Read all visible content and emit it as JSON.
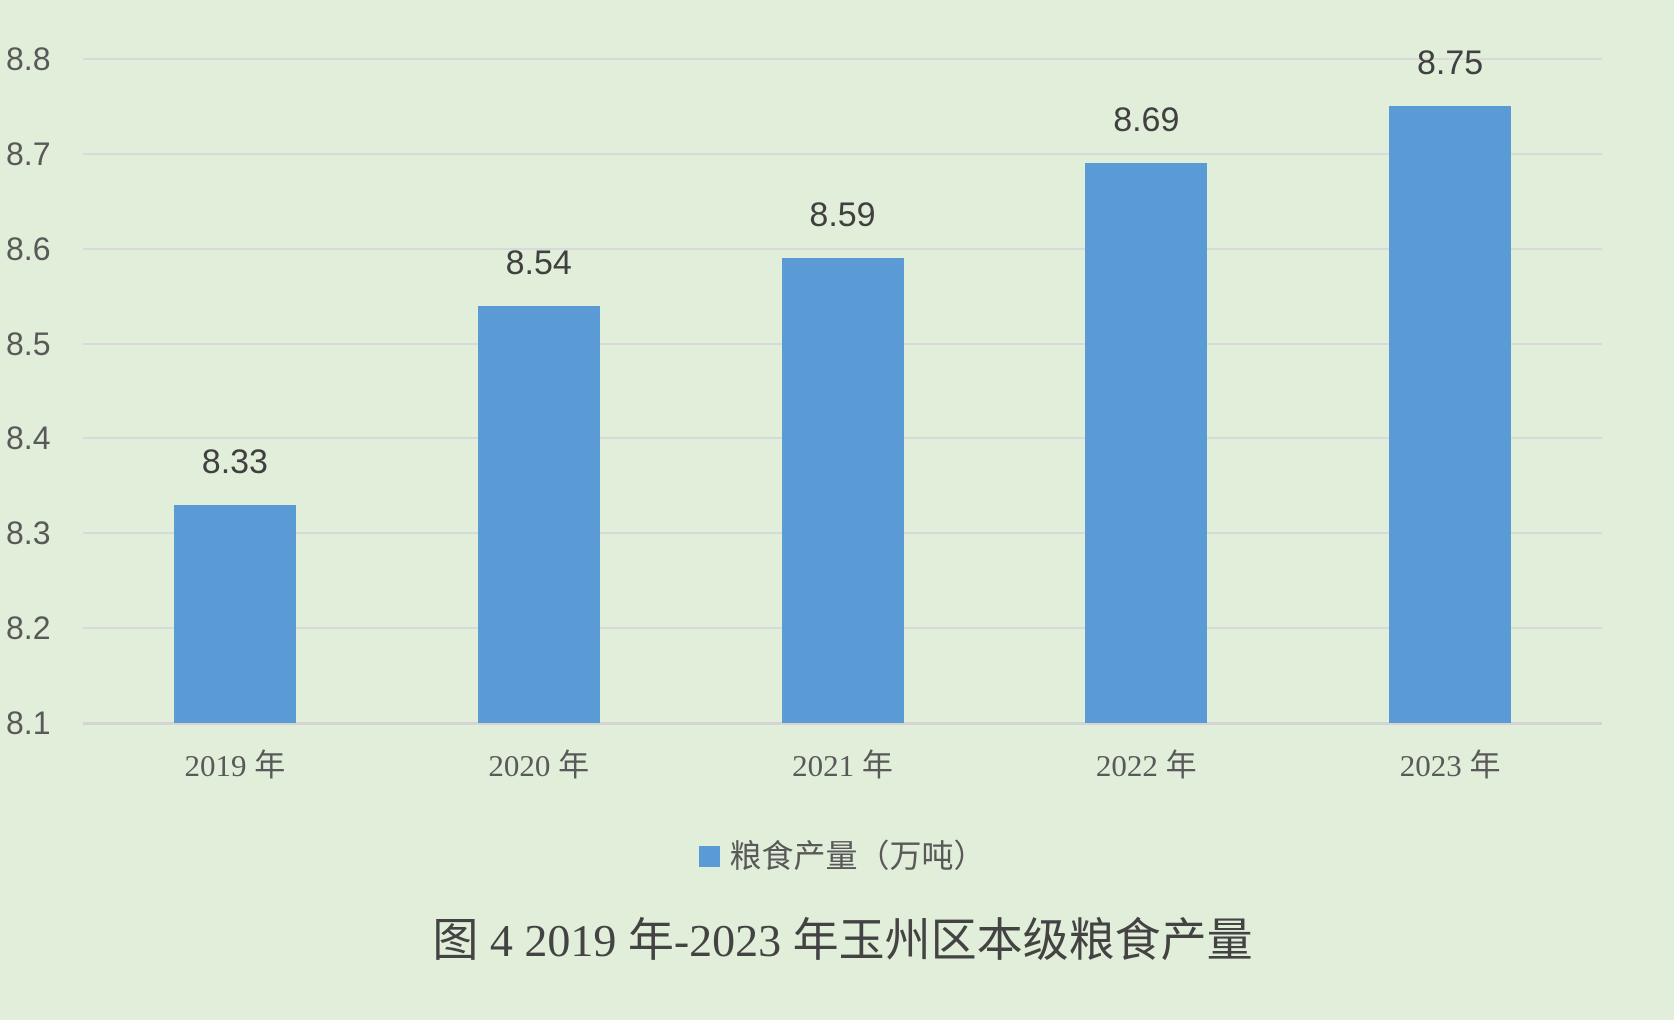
{
  "chart_data": {
    "type": "bar",
    "title": "图 4  2019 年-2023 年玉州区本级粮食产量",
    "categories": [
      "2019 年",
      "2020 年",
      "2021 年",
      "2022 年",
      "2023 年"
    ],
    "values": [
      8.33,
      8.54,
      8.59,
      8.69,
      8.75
    ],
    "data_labels": [
      "8.33",
      "8.54",
      "8.59",
      "8.69",
      "8.75"
    ],
    "legend": "粮食产量（万吨）",
    "legend_position": "bottom",
    "xlabel": "",
    "ylabel": "",
    "ylim": [
      8.1,
      8.8
    ],
    "ytick_labels": [
      "8.1",
      "8.2",
      "8.3",
      "8.4",
      "8.5",
      "8.6",
      "8.7",
      "8.8"
    ],
    "grid": "horizontal",
    "colors": {
      "bar": "#5b9bd5",
      "background": "#e1eed9",
      "gridline": "#d9d9d9",
      "tick_label": "#595959",
      "data_label": "#404040",
      "title": "#434343"
    }
  }
}
